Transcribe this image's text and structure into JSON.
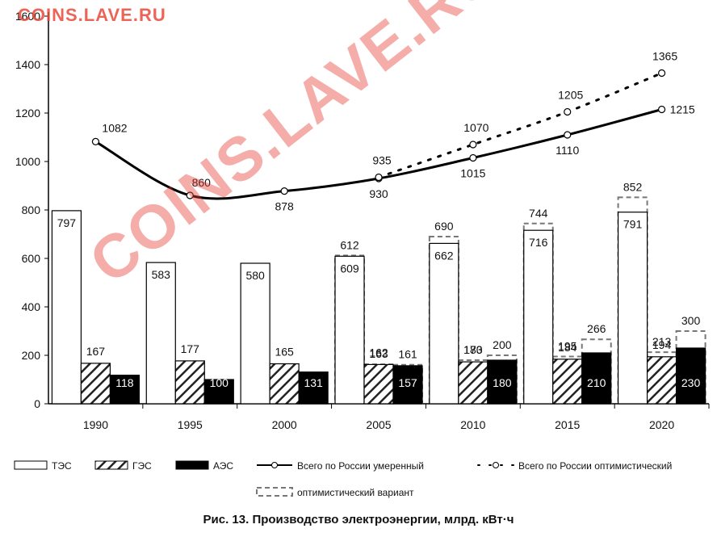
{
  "watermark": "COINS.LAVE.RU",
  "caption": "Рис. 13. Производство электроэнергии, млрд. кВт·ч",
  "colors": {
    "tes": "#ffffff",
    "ges_hatch": "#222222",
    "aes": "#000000",
    "axis": "#000000"
  },
  "chart_data": {
    "type": "bar",
    "title": "Рис. 13. Производство электроэнергии, млрд. кВт·ч",
    "categories": [
      "1990",
      "1995",
      "2000",
      "2005",
      "2010",
      "2015",
      "2020"
    ],
    "ylim": [
      0,
      1600
    ],
    "yticks": [
      "0",
      "200",
      "400",
      "600",
      "800",
      "1000",
      "1200",
      "1400",
      "1600"
    ],
    "grid": false,
    "legend_position": "bottom",
    "series": [
      {
        "name": "ТЭС",
        "kind": "bar",
        "style": "white",
        "values": [
          797,
          583,
          580,
          609,
          662,
          716,
          791
        ],
        "labels": [
          "797",
          "583",
          "580",
          "609",
          "662",
          "716",
          "791"
        ]
      },
      {
        "name": "ГЭС",
        "kind": "bar",
        "style": "hatch",
        "values": [
          167,
          177,
          165,
          162,
          173,
          184,
          194
        ],
        "labels": [
          "167",
          "177",
          "165",
          "162",
          "173",
          "184",
          "194"
        ]
      },
      {
        "name": "АЭС",
        "kind": "bar",
        "style": "black",
        "values": [
          118,
          100,
          131,
          157,
          180,
          210,
          230
        ],
        "labels": [
          "118",
          "100",
          "131",
          "157",
          "180",
          "210",
          "230"
        ]
      },
      {
        "name": "Всего по России умеренный",
        "kind": "line",
        "style": "solid",
        "x": [
          "1990",
          "1995",
          "2000",
          "2005",
          "2010",
          "2015",
          "2020"
        ],
        "values": [
          1082,
          860,
          878,
          930,
          1015,
          1110,
          1215
        ],
        "labels": [
          "1082",
          "860",
          "878",
          "930",
          "1015",
          "1110",
          "1215"
        ]
      },
      {
        "name": "Всего по России оптимистический",
        "kind": "line",
        "style": "dotted",
        "x": [
          "2005",
          "2010",
          "2015",
          "2020"
        ],
        "values": [
          935,
          1070,
          1205,
          1365
        ],
        "labels": [
          "935",
          "1070",
          "1205",
          "1365"
        ]
      },
      {
        "name": "оптимистический вариант",
        "kind": "bar-overlay",
        "style": "dashed",
        "groups": [
          {
            "category": "2005",
            "tes": 612,
            "ges": 163,
            "aes": 161
          },
          {
            "category": "2010",
            "tes": 690,
            "ges": 180,
            "aes": 200
          },
          {
            "category": "2015",
            "tes": 744,
            "ges": 195,
            "aes": 266
          },
          {
            "category": "2020",
            "tes": 852,
            "ges": 213,
            "aes": 300
          }
        ]
      }
    ],
    "legend": {
      "tes": "ТЭС",
      "ges": "ГЭС",
      "aes": "АЭС",
      "moderate": "Всего по России умеренный",
      "optimistic": "Всего по России оптимистический",
      "variant": "оптимистический вариант"
    }
  }
}
